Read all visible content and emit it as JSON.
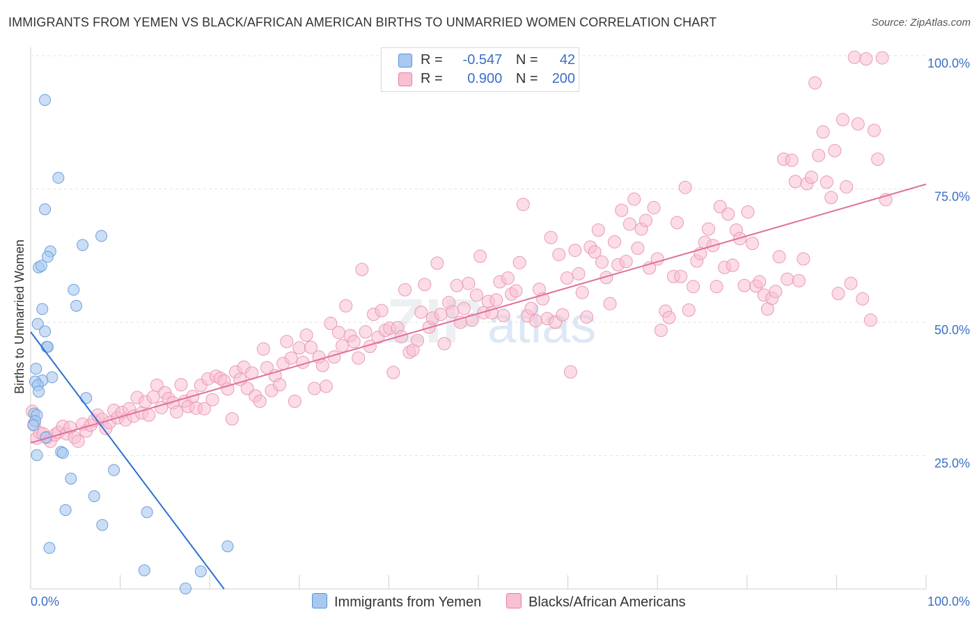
{
  "title": "IMMIGRANTS FROM YEMEN VS BLACK/AFRICAN AMERICAN BIRTHS TO UNMARRIED WOMEN CORRELATION CHART",
  "source": "Source: ZipAtlas.com",
  "watermark": {
    "zip": "ZIP",
    "atlas": "atlas"
  },
  "legend": {
    "r_label": "R =",
    "n_label": "N =",
    "rows": [
      {
        "r": "-0.547",
        "n": "42",
        "color": "#a8c8f0",
        "border": "#5b8fd6"
      },
      {
        "r": "0.900",
        "n": "200",
        "color": "#f9c0d2",
        "border": "#e57fa3"
      }
    ]
  },
  "bottom_legend": [
    {
      "label": "Immigrants from Yemen",
      "color": "#a8c8f0",
      "border": "#5b8fd6"
    },
    {
      "label": "Blacks/African Americans",
      "color": "#f9c0d2",
      "border": "#e57fa3"
    }
  ],
  "chart_data": {
    "type": "scatter",
    "title": "IMMIGRANTS FROM YEMEN VS BLACK/AFRICAN AMERICAN BIRTHS TO UNMARRIED WOMEN CORRELATION CHART",
    "xlabel": "",
    "ylabel": "Births to Unmarried Women",
    "xlim": [
      0,
      100
    ],
    "ylim": [
      0,
      100
    ],
    "x_ticks": [
      "0.0%",
      "100.0%"
    ],
    "y_ticks": [
      {
        "v": 25,
        "label": "25.0%"
      },
      {
        "v": 50,
        "label": "50.0%"
      },
      {
        "v": 75,
        "label": "75.0%"
      },
      {
        "v": 100,
        "label": "100.0%"
      }
    ],
    "grid": true,
    "legend_position": "top-center",
    "colors": {
      "blue_fill": "#a8c8f0",
      "blue_stroke": "#6e9fdc",
      "blue_line": "#2b6fd0",
      "pink_fill": "#f9c0d2",
      "pink_stroke": "#e89ab6",
      "pink_line": "#e0709a",
      "tick_label": "#3a6fc4"
    },
    "series": [
      {
        "name": "Immigrants from Yemen",
        "r": -0.547,
        "n": 42,
        "trend": {
          "x0": 0.0,
          "y0": 48.2,
          "x1": 21.6,
          "y1": 0
        },
        "points": [
          [
            1.6,
            91.7
          ],
          [
            3.1,
            77.1
          ],
          [
            1.6,
            71.2
          ],
          [
            7.9,
            66.2
          ],
          [
            5.8,
            64.5
          ],
          [
            2.2,
            63.3
          ],
          [
            1.9,
            62.3
          ],
          [
            0.9,
            60.3
          ],
          [
            1.2,
            60.6
          ],
          [
            4.8,
            56.1
          ],
          [
            5.1,
            53.1
          ],
          [
            1.3,
            52.5
          ],
          [
            0.8,
            49.7
          ],
          [
            1.6,
            48.3
          ],
          [
            1.8,
            45.4
          ],
          [
            1.9,
            45.4
          ],
          [
            0.6,
            41.3
          ],
          [
            2.4,
            39.7
          ],
          [
            1.3,
            39.1
          ],
          [
            0.5,
            38.9
          ],
          [
            0.8,
            38.2
          ],
          [
            0.9,
            37.0
          ],
          [
            6.2,
            35.8
          ],
          [
            0.4,
            32.9
          ],
          [
            0.7,
            32.6
          ],
          [
            0.5,
            31.5
          ],
          [
            0.3,
            30.7
          ],
          [
            1.7,
            28.4
          ],
          [
            3.4,
            25.7
          ],
          [
            3.6,
            25.5
          ],
          [
            0.7,
            25.1
          ],
          [
            9.3,
            22.3
          ],
          [
            4.5,
            20.7
          ],
          [
            7.1,
            17.4
          ],
          [
            3.9,
            14.8
          ],
          [
            13.0,
            14.4
          ],
          [
            8.0,
            12.0
          ],
          [
            2.1,
            7.7
          ],
          [
            22.0,
            8.0
          ],
          [
            12.7,
            3.5
          ],
          [
            19.0,
            3.3
          ],
          [
            17.3,
            0.1
          ]
        ]
      },
      {
        "name": "Blacks/African Americans",
        "r": 0.9,
        "n": 200,
        "trend": {
          "x0": 0.0,
          "y0": 27.4,
          "x1": 100,
          "y1": 75.9
        },
        "points": [
          [
            0.2,
            33.3
          ],
          [
            0.4,
            31.0
          ],
          [
            0.7,
            28.3
          ],
          [
            1.0,
            29.3
          ],
          [
            1.4,
            29.1
          ],
          [
            1.8,
            28.4
          ],
          [
            2.2,
            27.7
          ],
          [
            2.7,
            28.9
          ],
          [
            3.1,
            29.4
          ],
          [
            3.6,
            30.5
          ],
          [
            4.0,
            29.1
          ],
          [
            4.4,
            30.3
          ],
          [
            4.9,
            28.4
          ],
          [
            5.3,
            27.7
          ],
          [
            5.8,
            30.9
          ],
          [
            6.2,
            29.6
          ],
          [
            6.7,
            30.7
          ],
          [
            7.1,
            31.6
          ],
          [
            7.5,
            32.6
          ],
          [
            8.0,
            31.8
          ],
          [
            8.4,
            30.1
          ],
          [
            8.8,
            31.2
          ],
          [
            9.3,
            33.5
          ],
          [
            9.7,
            32.1
          ],
          [
            10.2,
            33.1
          ],
          [
            10.6,
            31.7
          ],
          [
            11.0,
            33.8
          ],
          [
            11.5,
            32.4
          ],
          [
            11.9,
            35.9
          ],
          [
            12.4,
            33.0
          ],
          [
            12.8,
            35.1
          ],
          [
            13.2,
            32.6
          ],
          [
            13.7,
            36.0
          ],
          [
            14.1,
            38.2
          ],
          [
            14.6,
            34.0
          ],
          [
            15.0,
            36.8
          ],
          [
            15.4,
            35.7
          ],
          [
            15.9,
            34.9
          ],
          [
            16.3,
            33.2
          ],
          [
            16.8,
            38.3
          ],
          [
            17.2,
            35.2
          ],
          [
            17.6,
            34.2
          ],
          [
            18.1,
            36.1
          ],
          [
            18.5,
            33.9
          ],
          [
            19.0,
            38.2
          ],
          [
            19.4,
            33.8
          ],
          [
            19.8,
            39.4
          ],
          [
            20.3,
            35.5
          ],
          [
            20.7,
            39.9
          ],
          [
            21.2,
            39.5
          ],
          [
            21.6,
            39.0
          ],
          [
            22.0,
            37.5
          ],
          [
            22.5,
            31.9
          ],
          [
            22.9,
            40.7
          ],
          [
            23.4,
            39.3
          ],
          [
            23.8,
            41.6
          ],
          [
            24.2,
            37.6
          ],
          [
            24.7,
            40.5
          ],
          [
            25.1,
            36.2
          ],
          [
            25.6,
            35.2
          ],
          [
            26.0,
            45.0
          ],
          [
            26.4,
            41.5
          ],
          [
            26.9,
            37.2
          ],
          [
            27.3,
            40.0
          ],
          [
            27.8,
            38.3
          ],
          [
            28.2,
            42.3
          ],
          [
            28.6,
            46.4
          ],
          [
            29.1,
            43.3
          ],
          [
            29.5,
            35.2
          ],
          [
            30.0,
            45.2
          ],
          [
            30.4,
            42.5
          ],
          [
            30.8,
            47.6
          ],
          [
            31.3,
            45.3
          ],
          [
            31.7,
            37.6
          ],
          [
            32.2,
            43.5
          ],
          [
            32.6,
            41.9
          ],
          [
            33.0,
            38.0
          ],
          [
            33.5,
            49.8
          ],
          [
            33.9,
            43.5
          ],
          [
            34.4,
            48.1
          ],
          [
            34.8,
            45.6
          ],
          [
            35.2,
            53.1
          ],
          [
            35.7,
            47.5
          ],
          [
            36.1,
            46.4
          ],
          [
            36.6,
            43.3
          ],
          [
            37.0,
            59.9
          ],
          [
            37.4,
            48.2
          ],
          [
            37.9,
            45.5
          ],
          [
            38.3,
            51.5
          ],
          [
            38.8,
            47.2
          ],
          [
            39.2,
            52.2
          ],
          [
            39.6,
            48.5
          ],
          [
            40.1,
            48.9
          ],
          [
            40.5,
            40.6
          ],
          [
            41.0,
            49.0
          ],
          [
            41.4,
            47.3
          ],
          [
            41.8,
            56.1
          ],
          [
            42.3,
            44.4
          ],
          [
            42.7,
            44.8
          ],
          [
            43.2,
            46.6
          ],
          [
            43.6,
            51.9
          ],
          [
            44.0,
            57.1
          ],
          [
            44.5,
            49.1
          ],
          [
            44.9,
            50.8
          ],
          [
            45.4,
            61.1
          ],
          [
            45.8,
            51.5
          ],
          [
            46.2,
            46.0
          ],
          [
            46.7,
            53.7
          ],
          [
            47.1,
            52.0
          ],
          [
            47.6,
            56.9
          ],
          [
            48.0,
            50.0
          ],
          [
            48.4,
            52.6
          ],
          [
            48.9,
            57.3
          ],
          [
            49.3,
            50.4
          ],
          [
            49.8,
            55.1
          ],
          [
            50.2,
            62.4
          ],
          [
            50.6,
            51.8
          ],
          [
            51.1,
            53.9
          ],
          [
            51.5,
            51.8
          ],
          [
            52.0,
            54.2
          ],
          [
            52.4,
            57.6
          ],
          [
            52.8,
            51.3
          ],
          [
            53.3,
            58.3
          ],
          [
            53.7,
            55.3
          ],
          [
            54.2,
            55.9
          ],
          [
            54.6,
            61.2
          ],
          [
            55.0,
            72.1
          ],
          [
            55.5,
            51.2
          ],
          [
            55.9,
            52.6
          ],
          [
            56.4,
            50.3
          ],
          [
            56.8,
            56.2
          ],
          [
            57.2,
            54.4
          ],
          [
            57.7,
            50.7
          ],
          [
            58.1,
            65.9
          ],
          [
            58.6,
            50.0
          ],
          [
            59.0,
            62.7
          ],
          [
            59.4,
            51.4
          ],
          [
            59.9,
            58.3
          ],
          [
            60.3,
            40.7
          ],
          [
            60.8,
            63.5
          ],
          [
            61.2,
            59.1
          ],
          [
            61.6,
            55.6
          ],
          [
            62.1,
            51.0
          ],
          [
            62.5,
            64.1
          ],
          [
            63.0,
            63.2
          ],
          [
            63.4,
            67.3
          ],
          [
            63.8,
            61.3
          ],
          [
            64.3,
            58.4
          ],
          [
            64.7,
            53.5
          ],
          [
            65.2,
            65.1
          ],
          [
            65.6,
            60.8
          ],
          [
            66.0,
            71.0
          ],
          [
            66.5,
            61.4
          ],
          [
            66.9,
            68.4
          ],
          [
            67.4,
            73.1
          ],
          [
            67.8,
            63.9
          ],
          [
            68.2,
            67.5
          ],
          [
            68.7,
            69.1
          ],
          [
            69.1,
            60.2
          ],
          [
            69.6,
            71.5
          ],
          [
            70.0,
            61.9
          ],
          [
            70.4,
            48.5
          ],
          [
            70.9,
            52.1
          ],
          [
            71.3,
            50.9
          ],
          [
            71.8,
            58.6
          ],
          [
            72.2,
            68.7
          ],
          [
            72.6,
            58.6
          ],
          [
            73.1,
            75.3
          ],
          [
            73.5,
            52.3
          ],
          [
            74.0,
            56.7
          ],
          [
            74.4,
            61.5
          ],
          [
            74.8,
            62.9
          ],
          [
            75.3,
            65.0
          ],
          [
            75.7,
            67.5
          ],
          [
            76.2,
            64.4
          ],
          [
            76.6,
            56.7
          ],
          [
            77.0,
            71.7
          ],
          [
            77.5,
            60.3
          ],
          [
            77.9,
            70.3
          ],
          [
            78.4,
            60.7
          ],
          [
            78.8,
            67.3
          ],
          [
            79.2,
            65.7
          ],
          [
            79.7,
            56.9
          ],
          [
            80.1,
            70.7
          ],
          [
            80.6,
            64.8
          ],
          [
            81.0,
            56.8
          ],
          [
            81.4,
            57.6
          ],
          [
            81.9,
            55.1
          ],
          [
            82.3,
            52.5
          ],
          [
            82.8,
            54.5
          ],
          [
            83.2,
            55.8
          ],
          [
            83.6,
            62.3
          ],
          [
            84.1,
            80.6
          ],
          [
            84.5,
            58.1
          ],
          [
            85.0,
            80.4
          ],
          [
            85.4,
            76.4
          ],
          [
            85.8,
            57.8
          ],
          [
            86.3,
            61.9
          ],
          [
            86.7,
            76.0
          ],
          [
            87.2,
            77.2
          ],
          [
            87.6,
            94.9
          ],
          [
            88.0,
            81.3
          ],
          [
            88.5,
            85.7
          ],
          [
            88.9,
            76.3
          ],
          [
            89.4,
            73.4
          ],
          [
            89.8,
            82.2
          ],
          [
            90.2,
            55.4
          ],
          [
            90.7,
            88.0
          ],
          [
            91.1,
            75.4
          ],
          [
            91.6,
            57.3
          ],
          [
            92.0,
            99.7
          ],
          [
            92.4,
            87.2
          ],
          [
            92.9,
            54.4
          ],
          [
            93.3,
            99.4
          ],
          [
            93.8,
            50.4
          ],
          [
            94.2,
            86.0
          ],
          [
            94.6,
            80.6
          ],
          [
            95.1,
            99.6
          ],
          [
            95.5,
            73.0
          ]
        ]
      }
    ]
  }
}
